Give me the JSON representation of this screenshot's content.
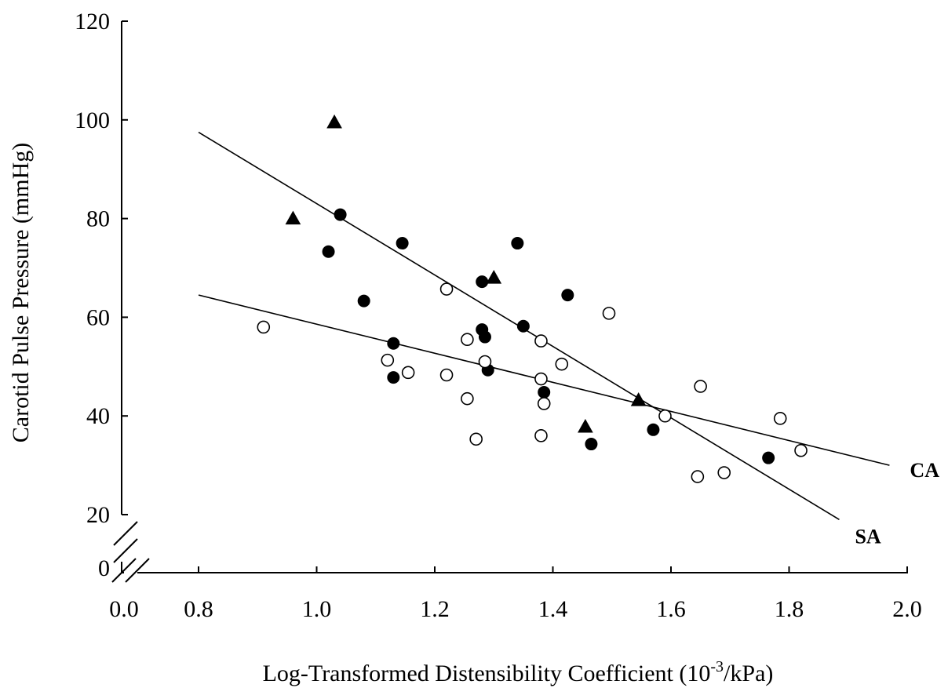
{
  "chart_data": {
    "type": "scatter",
    "title": "",
    "xlabel_main": "Log-Transformed Distensibility Coefficient (10",
    "xlabel_sup": "-3",
    "xlabel_tail": "/kPa)",
    "ylabel": "Carotid Pulse Pressure (mmHg)",
    "x_ticks": [
      "0.0",
      "0.8",
      "1.0",
      "1.2",
      "1.4",
      "1.6",
      "1.8",
      "2.0"
    ],
    "y_ticks": [
      "0",
      "20",
      "40",
      "60",
      "80",
      "100",
      "120"
    ],
    "xlim": [
      0.8,
      2.0
    ],
    "ylim": [
      20,
      120
    ],
    "axis_break": true,
    "series": [
      {
        "marker": "filled-circle",
        "points": [
          [
            1.04,
            80.8
          ],
          [
            1.02,
            73.3
          ],
          [
            1.08,
            63.3
          ],
          [
            1.145,
            75.0
          ],
          [
            1.13,
            54.7
          ],
          [
            1.13,
            47.8
          ],
          [
            1.28,
            67.2
          ],
          [
            1.34,
            75.0
          ],
          [
            1.28,
            57.5
          ],
          [
            1.285,
            56.0
          ],
          [
            1.29,
            49.3
          ],
          [
            1.35,
            58.2
          ],
          [
            1.425,
            64.5
          ],
          [
            1.385,
            44.8
          ],
          [
            1.465,
            34.3
          ],
          [
            1.57,
            37.2
          ],
          [
            1.765,
            31.5
          ]
        ]
      },
      {
        "marker": "filled-triangle",
        "points": [
          [
            1.03,
            99.5
          ],
          [
            0.96,
            80.0
          ],
          [
            1.3,
            68.0
          ],
          [
            1.455,
            37.8
          ],
          [
            1.545,
            43.2
          ]
        ]
      },
      {
        "marker": "open-circle",
        "points": [
          [
            0.91,
            58.0
          ],
          [
            1.12,
            51.3
          ],
          [
            1.155,
            48.8
          ],
          [
            1.22,
            65.7
          ],
          [
            1.22,
            48.3
          ],
          [
            1.255,
            55.5
          ],
          [
            1.255,
            43.5
          ],
          [
            1.27,
            35.3
          ],
          [
            1.285,
            51.0
          ],
          [
            1.38,
            55.2
          ],
          [
            1.38,
            47.5
          ],
          [
            1.385,
            42.5
          ],
          [
            1.38,
            36.0
          ],
          [
            1.415,
            50.5
          ],
          [
            1.495,
            60.8
          ],
          [
            1.59,
            40.0
          ],
          [
            1.65,
            46.0
          ],
          [
            1.645,
            27.7
          ],
          [
            1.69,
            28.5
          ],
          [
            1.785,
            39.5
          ],
          [
            1.82,
            33.0
          ]
        ]
      }
    ],
    "regression_lines": [
      {
        "label": "CA",
        "from": [
          0.8,
          64.5
        ],
        "to": [
          1.97,
          30.0
        ]
      },
      {
        "label": "SA",
        "from": [
          0.8,
          97.5
        ],
        "to": [
          1.885,
          19.0
        ]
      }
    ]
  }
}
